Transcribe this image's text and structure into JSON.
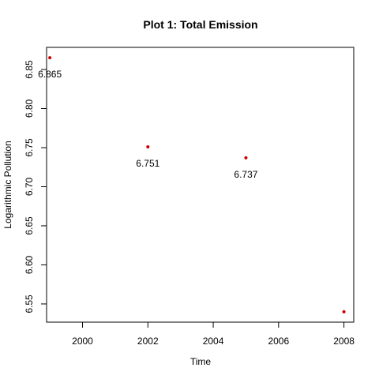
{
  "chart_data": {
    "type": "scatter",
    "title": "Plot 1: Total Emission",
    "xlabel": "Time",
    "ylabel": "Logarithmic Pollution",
    "xlim": [
      1998.9,
      2008.3
    ],
    "ylim": [
      6.5267,
      6.8783
    ],
    "x_ticks": [
      2000,
      2002,
      2004,
      2006,
      2008
    ],
    "x_tick_labels": [
      "2000",
      "2002",
      "2004",
      "2006",
      "2008"
    ],
    "y_ticks": [
      6.55,
      6.6,
      6.65,
      6.7,
      6.75,
      6.8,
      6.85
    ],
    "y_tick_labels": [
      "6.55",
      "6.60",
      "6.65",
      "6.70",
      "6.75",
      "6.80",
      "6.85"
    ],
    "points": [
      {
        "x": 1999,
        "y": 6.865,
        "label": "6.865"
      },
      {
        "x": 2002,
        "y": 6.751,
        "label": "6.751"
      },
      {
        "x": 2005,
        "y": 6.737,
        "label": "6.737"
      },
      {
        "x": 2008,
        "y": 6.54,
        "label": ""
      }
    ],
    "point_color": "#cc0000",
    "grid": false,
    "legend": false
  }
}
